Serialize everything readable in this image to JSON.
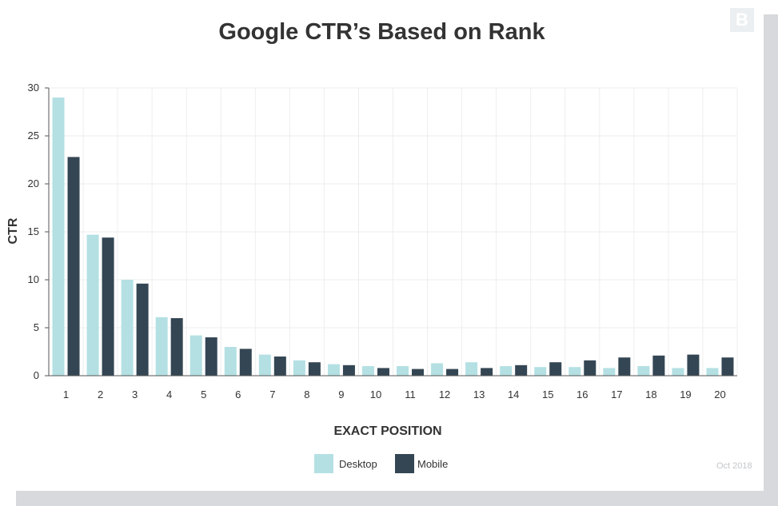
{
  "logo": {
    "text": "B"
  },
  "date_note": "Oct 2018",
  "colors": {
    "desktop": "#b4e0e3",
    "mobile": "#344654",
    "grid": "#eeeeee",
    "axis": "#555555",
    "text": "#333333"
  },
  "chart_data": {
    "type": "bar",
    "title": "Google CTR’s Based on Rank",
    "xlabel": "EXACT POSITION",
    "ylabel": "CTR",
    "ylim": [
      0,
      30
    ],
    "yticks": [
      0,
      5,
      10,
      15,
      20,
      25,
      30
    ],
    "categories": [
      "1",
      "2",
      "3",
      "4",
      "5",
      "6",
      "7",
      "8",
      "9",
      "10",
      "11",
      "12",
      "13",
      "14",
      "15",
      "16",
      "17",
      "18",
      "19",
      "20"
    ],
    "grid": true,
    "legend_position": "bottom-center",
    "series": [
      {
        "name": "Desktop",
        "color": "#b4e0e3",
        "values": [
          29.0,
          14.7,
          10.0,
          6.1,
          4.2,
          3.0,
          2.2,
          1.6,
          1.2,
          1.0,
          1.0,
          1.3,
          1.4,
          1.0,
          0.9,
          0.9,
          0.8,
          1.0,
          0.8,
          0.8
        ]
      },
      {
        "name": "Mobile",
        "color": "#344654",
        "values": [
          22.8,
          14.4,
          9.6,
          6.0,
          4.0,
          2.8,
          2.0,
          1.4,
          1.1,
          0.8,
          0.7,
          0.7,
          0.8,
          1.1,
          1.4,
          1.6,
          1.9,
          2.1,
          2.2,
          1.9
        ]
      }
    ]
  }
}
